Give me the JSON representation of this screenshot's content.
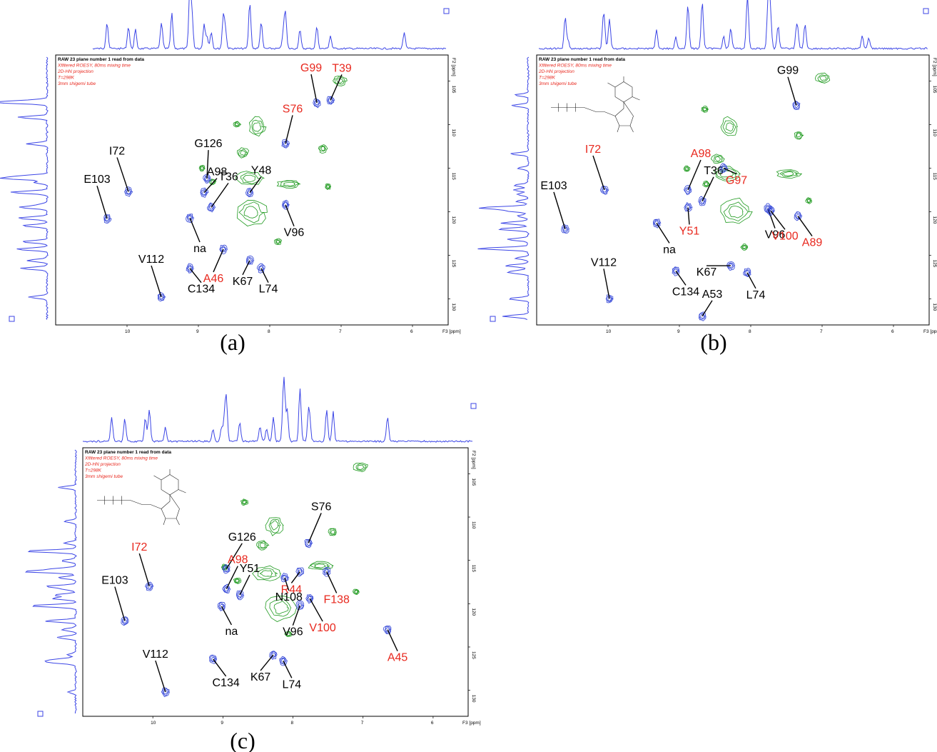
{
  "colors": {
    "negative_peak": "#2b3fd6",
    "positive_peak": "#1f9a1f",
    "label_black": "#000000",
    "label_red": "#e8281e",
    "projection": "#3c46e6"
  },
  "chart_data": [
    {
      "type": "scatter",
      "panel": "(a)",
      "header": [
        "RAW 23 plane number 1 read from data",
        "Xfiltered ROESY, 80ms mixing time",
        "2D-HN projection",
        "T=298K",
        "3mm shigemi tube"
      ],
      "xlabel": "F3 [ppm]",
      "ylabel": "F2 [ppm]",
      "xlim": [
        11.0,
        5.5
      ],
      "ylim": [
        102.0,
        133.0
      ],
      "x_ticks": [
        10,
        9,
        8,
        7,
        6
      ],
      "y_ticks": [
        105,
        110,
        115,
        120,
        125,
        130
      ],
      "grid": false,
      "ligand_structure": false,
      "peaks": [
        {
          "label": "G99",
          "x": 7.34,
          "y": 107.5,
          "color": "red",
          "sign": "negative"
        },
        {
          "label": "T39",
          "x": 7.15,
          "y": 107.2,
          "color": "red",
          "sign": "negative"
        },
        {
          "label": "S76",
          "x": 7.78,
          "y": 112.2,
          "color": "red",
          "sign": "negative"
        },
        {
          "label": "G126",
          "x": 8.88,
          "y": 116.2,
          "color": "black",
          "sign": "negative"
        },
        {
          "label": "A98",
          "x": 8.92,
          "y": 117.8,
          "color": "black",
          "sign": "negative"
        },
        {
          "label": "T36",
          "x": 8.82,
          "y": 119.5,
          "color": "black",
          "sign": "negative"
        },
        {
          "label": "Y48",
          "x": 8.28,
          "y": 117.8,
          "color": "black",
          "sign": "negative"
        },
        {
          "label": "I72",
          "x": 9.98,
          "y": 117.7,
          "color": "black",
          "sign": "negative"
        },
        {
          "label": "E103",
          "x": 10.28,
          "y": 120.8,
          "color": "black",
          "sign": "negative"
        },
        {
          "label": "na",
          "x": 9.12,
          "y": 120.7,
          "color": "black",
          "sign": "negative"
        },
        {
          "label": "V96",
          "x": 7.78,
          "y": 119.2,
          "color": "black",
          "sign": "negative"
        },
        {
          "label": "A46",
          "x": 8.65,
          "y": 124.3,
          "color": "red",
          "sign": "negative"
        },
        {
          "label": "V112",
          "x": 9.52,
          "y": 129.8,
          "color": "black",
          "sign": "negative"
        },
        {
          "label": "C134",
          "x": 9.12,
          "y": 126.5,
          "color": "black",
          "sign": "negative"
        },
        {
          "label": "K67",
          "x": 8.28,
          "y": 125.6,
          "color": "black",
          "sign": "negative"
        },
        {
          "label": "L74",
          "x": 8.12,
          "y": 126.5,
          "color": "black",
          "sign": "negative"
        }
      ]
    },
    {
      "type": "scatter",
      "panel": "(b)",
      "header": [
        "RAW 23 plane number 1 read from data",
        "Xfiltered ROESY, 80ms mixing time",
        "2D-HN projection",
        "T=298K",
        "3mm shigemi tube"
      ],
      "xlabel": "F3 [ppm]",
      "ylabel": "F2 [ppm]",
      "xlim": [
        11.0,
        5.5
      ],
      "ylim": [
        102.0,
        133.0
      ],
      "x_ticks": [
        10,
        9,
        8,
        7,
        6
      ],
      "y_ticks": [
        105,
        110,
        115,
        120,
        125,
        130
      ],
      "grid": false,
      "ligand_structure": true,
      "peaks": [
        {
          "label": "G99",
          "x": 7.36,
          "y": 107.8,
          "color": "black",
          "sign": "negative"
        },
        {
          "label": "I72",
          "x": 10.05,
          "y": 117.5,
          "color": "red",
          "sign": "negative"
        },
        {
          "label": "E103",
          "x": 10.6,
          "y": 122.0,
          "color": "black",
          "sign": "negative"
        },
        {
          "label": "A98",
          "x": 8.88,
          "y": 117.5,
          "color": "red",
          "sign": "negative"
        },
        {
          "label": "T36",
          "x": 8.68,
          "y": 118.8,
          "color": "black",
          "sign": "negative"
        },
        {
          "label": "G97",
          "x": 8.38,
          "y": 115.0,
          "color": "red",
          "sign": "negative"
        },
        {
          "label": "Y51",
          "x": 8.88,
          "y": 119.5,
          "color": "red",
          "sign": "negative"
        },
        {
          "label": "na",
          "x": 9.32,
          "y": 121.3,
          "color": "black",
          "sign": "negative"
        },
        {
          "label": "V96",
          "x": 7.76,
          "y": 119.6,
          "color": "black",
          "sign": "negative"
        },
        {
          "label": "V100",
          "x": 7.72,
          "y": 119.9,
          "color": "red",
          "sign": "negative"
        },
        {
          "label": "A89",
          "x": 7.34,
          "y": 120.5,
          "color": "red",
          "sign": "negative"
        },
        {
          "label": "V112",
          "x": 9.98,
          "y": 130.0,
          "color": "black",
          "sign": "negative"
        },
        {
          "label": "C134",
          "x": 9.05,
          "y": 126.8,
          "color": "black",
          "sign": "negative"
        },
        {
          "label": "K67",
          "x": 8.28,
          "y": 126.2,
          "color": "black",
          "sign": "negative"
        },
        {
          "label": "L74",
          "x": 8.05,
          "y": 127.0,
          "color": "black",
          "sign": "negative"
        },
        {
          "label": "A53",
          "x": 8.68,
          "y": 132.0,
          "color": "black",
          "sign": "negative"
        }
      ]
    },
    {
      "type": "scatter",
      "panel": "(c)",
      "header": [
        "RAW 23 plane number 1 read from data",
        "Xfiltered ROESY, 80ms mixing time",
        "2D-HN projection",
        "T=298K",
        "3mm shigemi tube"
      ],
      "xlabel": "F3 [ppm]",
      "ylabel": "F2 [ppm]",
      "xlim": [
        11.0,
        5.5
      ],
      "ylim": [
        102.0,
        133.0
      ],
      "x_ticks": [
        10,
        9,
        8,
        7,
        6
      ],
      "y_ticks": [
        105,
        110,
        115,
        120,
        125,
        130
      ],
      "grid": false,
      "ligand_structure": true,
      "peaks": [
        {
          "label": "I72",
          "x": 10.05,
          "y": 118.0,
          "color": "red",
          "sign": "negative"
        },
        {
          "label": "E103",
          "x": 10.4,
          "y": 122.0,
          "color": "black",
          "sign": "negative"
        },
        {
          "label": "G126",
          "x": 8.95,
          "y": 116.0,
          "color": "black",
          "sign": "negative"
        },
        {
          "label": "A98",
          "x": 8.95,
          "y": 118.3,
          "color": "red",
          "sign": "negative"
        },
        {
          "label": "Y51",
          "x": 8.76,
          "y": 119.0,
          "color": "black",
          "sign": "negative"
        },
        {
          "label": "S76",
          "x": 7.78,
          "y": 113.0,
          "color": "black",
          "sign": "negative"
        },
        {
          "label": "R44",
          "x": 7.9,
          "y": 116.3,
          "color": "red",
          "sign": "negative"
        },
        {
          "label": "N108",
          "x": 8.12,
          "y": 117.0,
          "color": "black",
          "sign": "negative"
        },
        {
          "label": "F138",
          "x": 7.52,
          "y": 116.3,
          "color": "red",
          "sign": "negative"
        },
        {
          "label": "na",
          "x": 9.02,
          "y": 120.3,
          "color": "black",
          "sign": "negative"
        },
        {
          "label": "V96",
          "x": 7.9,
          "y": 120.2,
          "color": "black",
          "sign": "negative"
        },
        {
          "label": "V100",
          "x": 7.76,
          "y": 119.4,
          "color": "red",
          "sign": "negative"
        },
        {
          "label": "A45",
          "x": 6.65,
          "y": 123.0,
          "color": "red",
          "sign": "negative"
        },
        {
          "label": "V112",
          "x": 9.82,
          "y": 130.2,
          "color": "black",
          "sign": "negative"
        },
        {
          "label": "C134",
          "x": 9.14,
          "y": 126.4,
          "color": "black",
          "sign": "negative"
        },
        {
          "label": "K67",
          "x": 8.28,
          "y": 125.9,
          "color": "black",
          "sign": "negative"
        },
        {
          "label": "L74",
          "x": 8.14,
          "y": 126.6,
          "color": "black",
          "sign": "negative"
        }
      ]
    }
  ]
}
